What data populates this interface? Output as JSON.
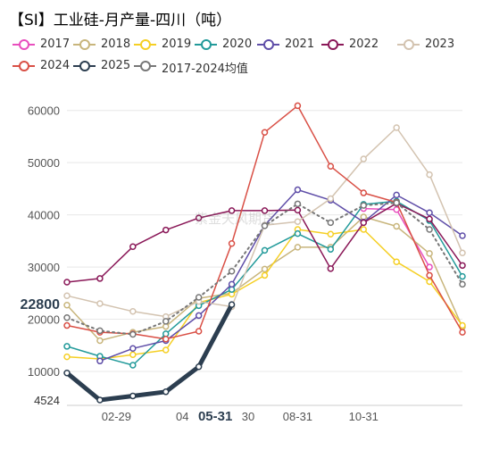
{
  "title": "【SI】工业硅-月产量-四川（吨）",
  "watermark": "紫金天风期货",
  "chart_data": {
    "type": "line",
    "title": "【SI】工业硅-月产量-四川（吨）",
    "ylim": [
      4524,
      62000
    ],
    "y_ticks": [
      "60000",
      "50000",
      "40000",
      "30000",
      "20000",
      "10000"
    ],
    "y_highlight_labels": [
      "22800",
      "4524"
    ],
    "y_highlight_values": [
      22800,
      4524
    ],
    "x_labels": [
      "02-29",
      "04",
      "05-31",
      "30",
      "08-31",
      "10-31"
    ],
    "x_label_positions": [
      1.5,
      3.5,
      4.5,
      5.5,
      7.0,
      9.0
    ],
    "x_highlight_label": "05-31",
    "legend_position": "top",
    "series": [
      {
        "name": "2017",
        "color": "#e84fbe",
        "marker": "circle",
        "width": 1.5,
        "values": [
          null,
          null,
          null,
          null,
          null,
          null,
          null,
          null,
          null,
          41200,
          41000,
          30000
        ]
      },
      {
        "name": "2018",
        "color": "#c8b57c",
        "marker": "circle",
        "width": 1.5,
        "values": [
          22700,
          15900,
          17500,
          18600,
          24000,
          25000,
          29600,
          33800,
          33800,
          39600,
          37800,
          32600,
          18500
        ]
      },
      {
        "name": "2019",
        "color": "#f5cf24",
        "marker": "circle",
        "width": 1.5,
        "values": [
          12800,
          12400,
          13200,
          14100,
          23200,
          24800,
          28400,
          37200,
          36300,
          37200,
          31000,
          27200,
          18800
        ]
      },
      {
        "name": "2020",
        "color": "#229a9a",
        "marker": "circle",
        "width": 1.5,
        "values": [
          14800,
          12900,
          11200,
          17200,
          22600,
          25700,
          33200,
          36400,
          33400,
          42000,
          42600,
          38900,
          28200
        ]
      },
      {
        "name": "2021",
        "color": "#5f4ea8",
        "marker": "circle",
        "width": 1.5,
        "values": [
          null,
          12000,
          14400,
          15900,
          20700,
          26700,
          38000,
          44800,
          42800,
          38600,
          43800,
          40400,
          36000
        ]
      },
      {
        "name": "2022",
        "color": "#8a1858",
        "marker": "circle",
        "width": 1.5,
        "values": [
          27100,
          27800,
          33900,
          37100,
          39400,
          40800,
          40800,
          40900,
          29700,
          38500,
          42200,
          39200,
          30300
        ]
      },
      {
        "name": "2023",
        "color": "#d3c3b0",
        "marker": "circle",
        "width": 1.5,
        "values": [
          24500,
          23000,
          21500,
          20500,
          23400,
          22400,
          38000,
          38700,
          43100,
          50700,
          56700,
          47700,
          32700
        ]
      },
      {
        "name": "2024",
        "color": "#d94f45",
        "marker": "circle",
        "width": 1.5,
        "values": [
          18800,
          17500,
          17200,
          16200,
          17700,
          34500,
          55800,
          60900,
          49300,
          44200,
          42400,
          28400,
          17500
        ]
      },
      {
        "name": "2025",
        "color": "#2c3e50",
        "marker": "circle",
        "width": 5,
        "values": [
          9700,
          4524,
          5300,
          6100,
          10900,
          22800
        ]
      },
      {
        "name": "2017-2024均值",
        "color": "#777777",
        "marker": "circle",
        "width": 2,
        "dashed": true,
        "values": [
          20300,
          17800,
          17100,
          19600,
          24200,
          29200,
          37900,
          42100,
          38500,
          41800,
          42300,
          37200,
          26700
        ]
      }
    ]
  }
}
